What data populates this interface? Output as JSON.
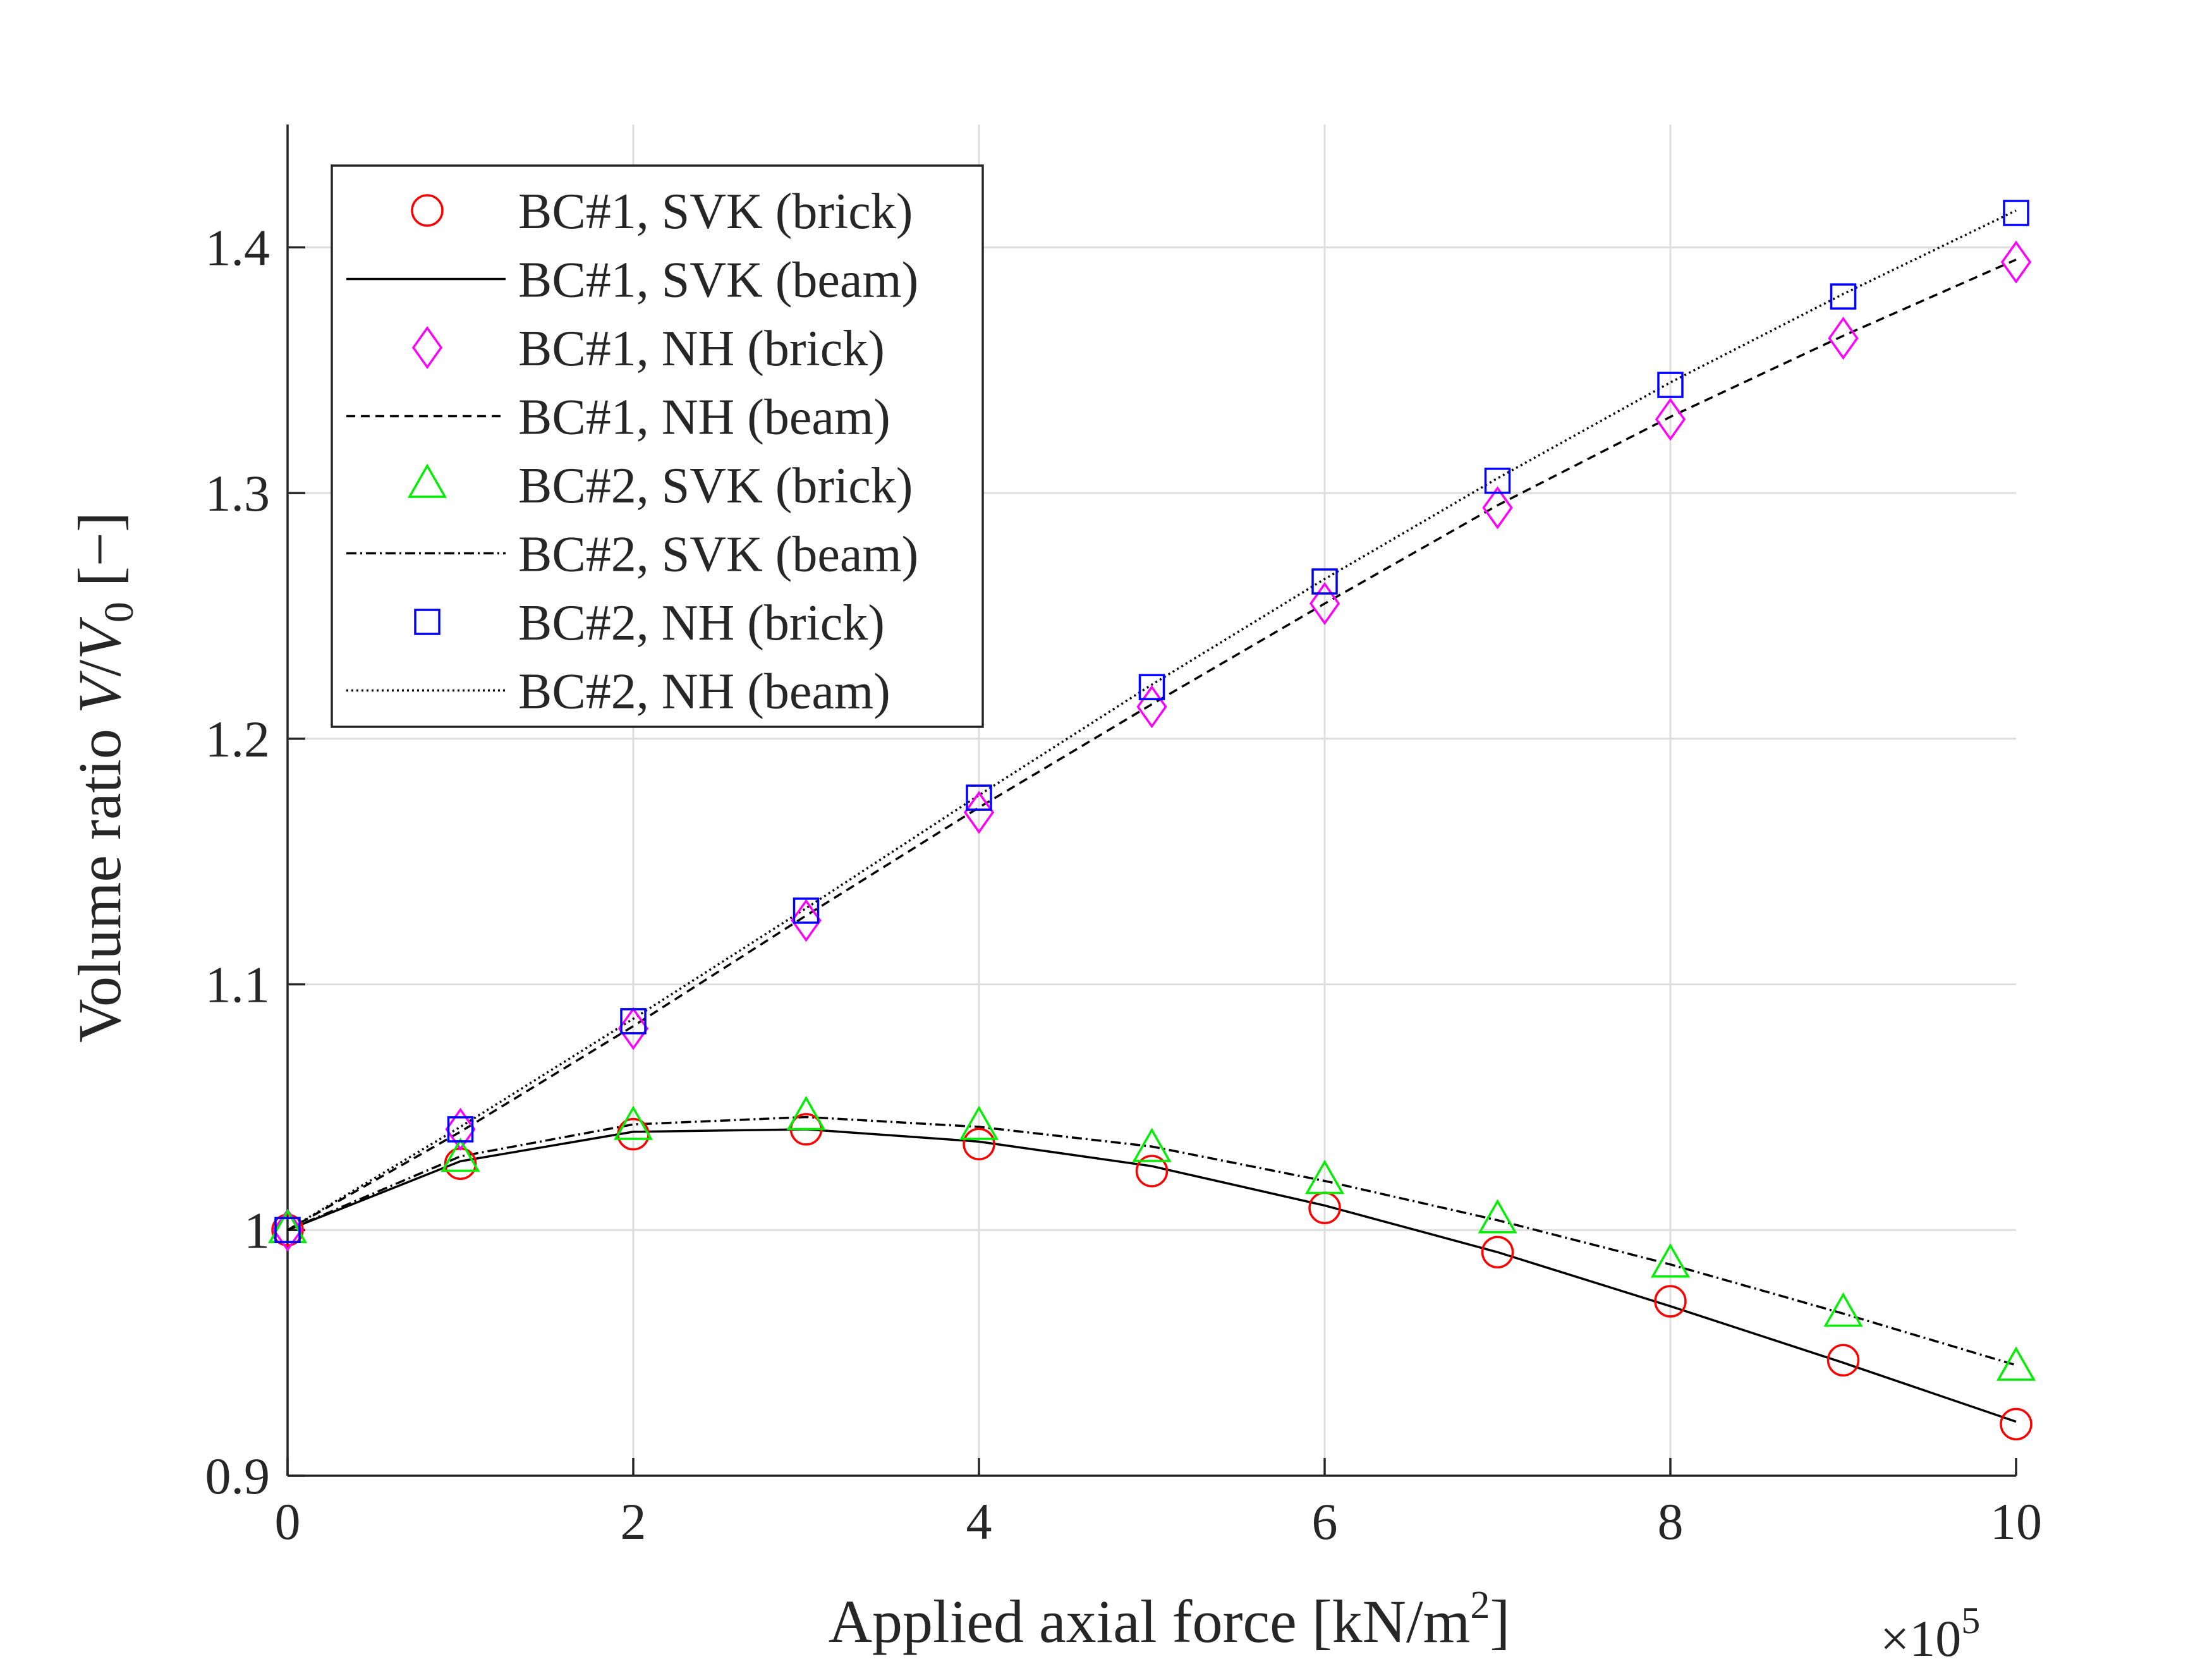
{
  "chart_data": {
    "type": "line",
    "title": "",
    "xlabel": "Applied axial force [kN/m²]",
    "ylabel": "Volume ratio V/V₀ [−]",
    "ylabel_parts": {
      "base": "Volume ratio ",
      "v": "V",
      "slash": "/",
      "v0": "V",
      "sub": "0",
      "unit": " [−]"
    },
    "xlabel_parts": {
      "base": "Applied axial force [kN/m",
      "sup": "2",
      "close": "]"
    },
    "x_multiplier": {
      "prefix": "×10",
      "exp": "5"
    },
    "xlim": [
      0,
      10
    ],
    "ylim": [
      0.9,
      1.45
    ],
    "xticks": [
      0,
      2,
      4,
      6,
      8,
      10
    ],
    "xtick_labels": [
      "0",
      "2",
      "4",
      "6",
      "8",
      "10"
    ],
    "yticks": [
      0.9,
      1.0,
      1.1,
      1.2,
      1.3,
      1.4
    ],
    "ytick_labels": [
      "0.9",
      "1",
      "1.1",
      "1.2",
      "1.3",
      "1.4"
    ],
    "grid": true,
    "legend_position": "top-left",
    "x": [
      0,
      1,
      2,
      3,
      4,
      5,
      6,
      7,
      8,
      9,
      10
    ],
    "series": [
      {
        "name": "BC#1, SVK (brick)",
        "kind": "marker",
        "marker": "circle",
        "color": "#ff0000",
        "values": [
          1.0,
          1.027,
          1.039,
          1.041,
          1.035,
          1.024,
          1.009,
          0.991,
          0.971,
          0.947,
          0.921
        ]
      },
      {
        "name": "BC#1, SVK (beam)",
        "kind": "line",
        "dash": "",
        "color": "#000000",
        "values": [
          1.0,
          1.028,
          1.04,
          1.041,
          1.036,
          1.026,
          1.01,
          0.991,
          0.969,
          0.946,
          0.922
        ]
      },
      {
        "name": "BC#1, NH (brick)",
        "kind": "marker",
        "marker": "diamond",
        "color": "#ff00ff",
        "values": [
          1.0,
          1.041,
          1.082,
          1.126,
          1.17,
          1.213,
          1.255,
          1.294,
          1.33,
          1.363,
          1.394
        ]
      },
      {
        "name": "BC#1, NH (beam)",
        "kind": "line",
        "dash": "14,9",
        "color": "#000000",
        "values": [
          1.0,
          1.04,
          1.083,
          1.128,
          1.172,
          1.214,
          1.255,
          1.295,
          1.331,
          1.364,
          1.395
        ]
      },
      {
        "name": "BC#2, SVK (brick)",
        "kind": "marker",
        "marker": "triangle",
        "color": "#00ee00",
        "values": [
          1.0,
          1.029,
          1.042,
          1.046,
          1.042,
          1.033,
          1.02,
          1.004,
          0.986,
          0.966,
          0.944
        ]
      },
      {
        "name": "BC#2, SVK (beam)",
        "kind": "line",
        "dash": "16,6,3,6",
        "color": "#000000",
        "values": [
          1.0,
          1.03,
          1.043,
          1.046,
          1.042,
          1.034,
          1.02,
          1.004,
          0.986,
          0.966,
          0.945
        ]
      },
      {
        "name": "BC#2, NH (brick)",
        "kind": "marker",
        "marker": "square",
        "color": "#0000ff",
        "values": [
          1.0,
          1.041,
          1.085,
          1.13,
          1.176,
          1.221,
          1.264,
          1.305,
          1.344,
          1.38,
          1.414
        ]
      },
      {
        "name": "BC#2, NH (beam)",
        "kind": "line",
        "dash": "3,5",
        "color": "#000000",
        "values": [
          1.0,
          1.042,
          1.086,
          1.131,
          1.177,
          1.222,
          1.265,
          1.306,
          1.345,
          1.381,
          1.415
        ]
      }
    ]
  }
}
